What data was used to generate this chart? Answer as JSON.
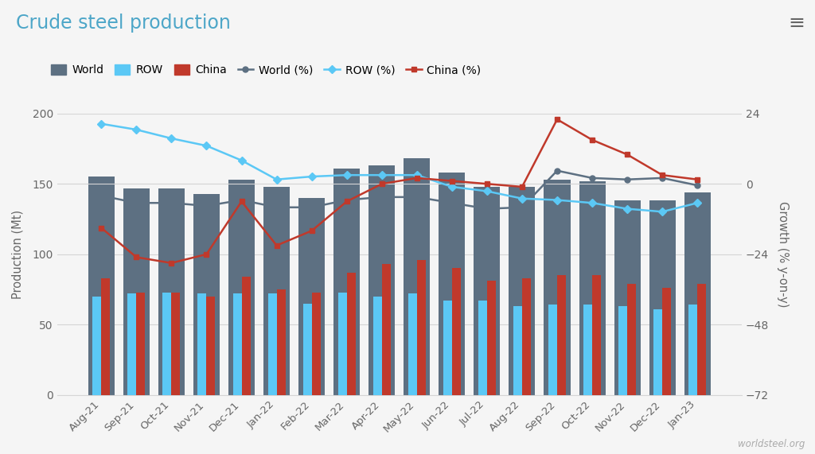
{
  "categories": [
    "Aug-21",
    "Sep-21",
    "Oct-21",
    "Nov-21",
    "Dec-21",
    "Jan-22",
    "Feb-22",
    "Mar-22",
    "Apr-22",
    "May-22",
    "Jun-22",
    "Jul-22",
    "Aug-22",
    "Sep-22",
    "Oct-22",
    "Nov-22",
    "Dec-22",
    "Jan-23"
  ],
  "world_bar": [
    155,
    147,
    147,
    143,
    153,
    148,
    140,
    161,
    163,
    168,
    158,
    148,
    148,
    153,
    152,
    138,
    138,
    144
  ],
  "row_bar": [
    70,
    72,
    73,
    72,
    72,
    72,
    65,
    73,
    70,
    72,
    67,
    67,
    63,
    64,
    64,
    63,
    61,
    64
  ],
  "china_bar": [
    83,
    73,
    73,
    70,
    84,
    75,
    73,
    87,
    93,
    96,
    90,
    81,
    83,
    85,
    85,
    79,
    76,
    79
  ],
  "world_pct": [
    -4.0,
    -6.5,
    -6.5,
    -7.5,
    -5.5,
    -8.0,
    -8.0,
    -5.5,
    -4.5,
    -4.5,
    -6.5,
    -8.5,
    -8.0,
    4.5,
    2.0,
    1.5,
    2.0,
    -0.5
  ],
  "row_pct": [
    20.5,
    18.5,
    15.5,
    13.0,
    8.0,
    1.5,
    2.5,
    3.0,
    3.0,
    3.0,
    -1.0,
    -2.5,
    -5.0,
    -5.5,
    -6.5,
    -8.5,
    -9.5,
    -6.5
  ],
  "china_pct": [
    -15,
    -25,
    -27,
    -24,
    -6,
    -21,
    -16,
    -6,
    0,
    2,
    1,
    0,
    -1,
    22,
    15,
    10,
    3,
    1.5
  ],
  "title": "Crude steel production",
  "ylabel_left": "Production (Mt)",
  "ylabel_right": "Growth (% y-on-y)",
  "ylim_left": [
    0,
    200
  ],
  "ylim_right": [
    -72,
    24
  ],
  "yticks_left": [
    0,
    50,
    100,
    150,
    200
  ],
  "yticks_right": [
    -72,
    -48,
    -24,
    0,
    24
  ],
  "bg_color": "#f5f5f5",
  "plot_bg_color": "#f5f5f5",
  "world_bar_color": "#5d7082",
  "row_bar_color": "#5bc8f5",
  "china_bar_color": "#c0392b",
  "world_pct_color": "#5d7082",
  "row_pct_color": "#5bc8f5",
  "china_pct_color": "#c0392b",
  "title_color": "#4da6c8",
  "grid_color": "#d5d5d5",
  "watermark": "worldsteel.org",
  "legend_labels": [
    "World",
    "ROW",
    "China",
    "World (%)",
    "ROW (%)",
    "China (%)"
  ]
}
